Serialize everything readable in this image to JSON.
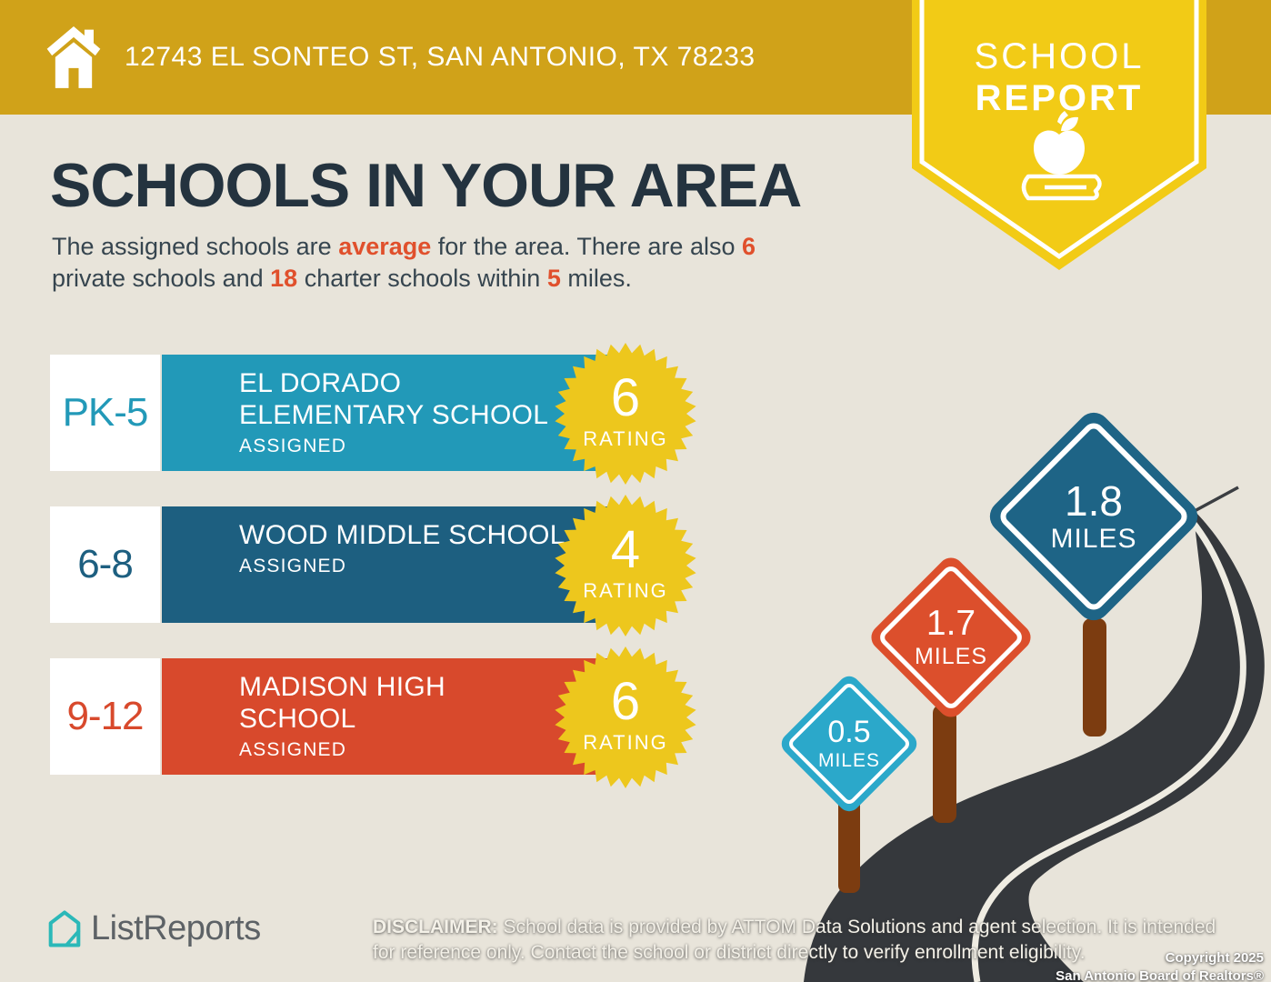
{
  "page": {
    "background": "#e8e4da"
  },
  "header": {
    "address": "12743 EL SONTEO ST, SAN ANTONIO, TX 78233",
    "bar_color": "#d0a219"
  },
  "report_badge": {
    "line1": "SCHOOL",
    "line2": "REPORT",
    "color": "#f2cb16"
  },
  "intro": {
    "title": "SCHOOLS IN YOUR AREA",
    "s1": "The assigned schools are ",
    "h1": "average",
    "s2": " for the area. There are also ",
    "h2": "6",
    "s3": "private schools and ",
    "h3": "18",
    "s4": " charter schools within ",
    "h4": "5",
    "s5": " miles.",
    "highlight_color": "#e0502c",
    "text_color": "#36454f"
  },
  "rating_badge": {
    "color": "#edc71d"
  },
  "schools": [
    {
      "grades": "PK-5",
      "name": "EL DORADO\nELEMENTARY SCHOOL",
      "status": "ASSIGNED",
      "rating": "6",
      "rating_label": "RATING",
      "color": "#2299b8"
    },
    {
      "grades": "6-8",
      "name": "WOOD MIDDLE SCHOOL",
      "status": "ASSIGNED",
      "rating": "4",
      "rating_label": "RATING",
      "color": "#1d5f80"
    },
    {
      "grades": "9-12",
      "name": "MADISON HIGH\nSCHOOL",
      "status": "ASSIGNED",
      "rating": "6",
      "rating_label": "RATING",
      "color": "#d8492c"
    }
  ],
  "distance_signs": [
    {
      "value": "0.5",
      "unit": "MILES",
      "color": "#2ba8ca"
    },
    {
      "value": "1.7",
      "unit": "MILES",
      "color": "#dc4f2c"
    },
    {
      "value": "1.8",
      "unit": "MILES",
      "color": "#1e6486"
    }
  ],
  "road": {
    "asphalt_color": "#35383c",
    "line_color": "#efece2",
    "post_color": "#7c3c10"
  },
  "footer": {
    "brand": "ListReports",
    "disclaimer_label": "DISCLAIMER:",
    "disclaimer_text": " School data is provided by ATTOM Data Solutions and agent selection. It is intended for reference only. Contact the school or district directly to verify enrollment eligibility.",
    "copyright1": "Copyright 2025",
    "copyright2": "San Antonio Board of Realtors®"
  }
}
